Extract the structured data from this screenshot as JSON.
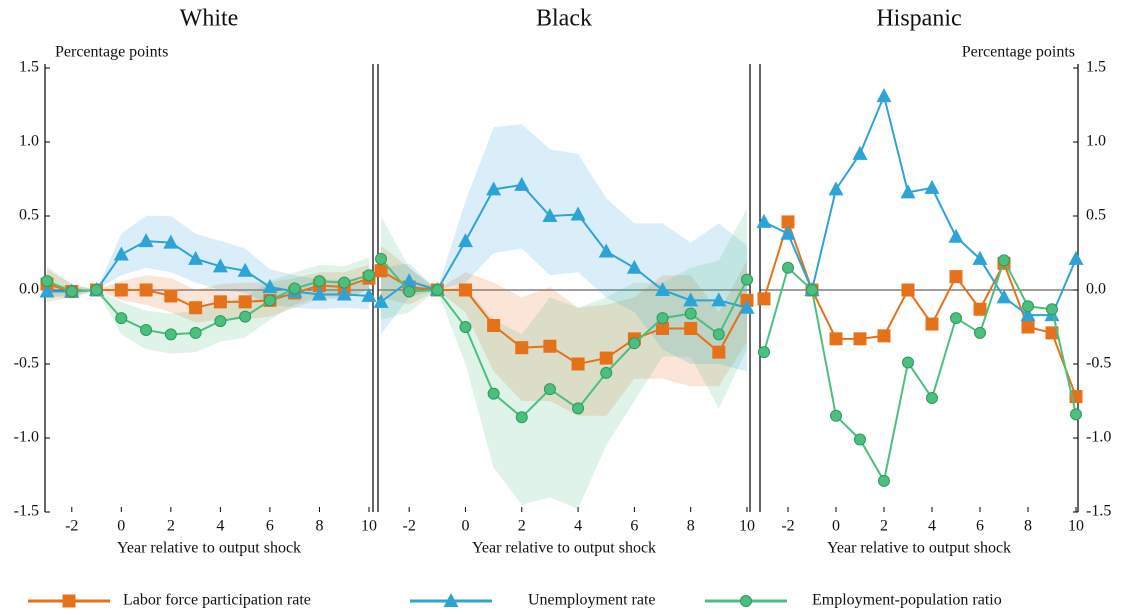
{
  "chart_data": [
    {
      "type": "line",
      "title": "White",
      "ylabel": "Percentage points",
      "xlabel": "Year relative to output shock",
      "ytick_side": "left",
      "x": [
        -3,
        -2,
        -1,
        0,
        1,
        2,
        3,
        4,
        5,
        6,
        7,
        8,
        9,
        10
      ],
      "xlim": [
        -3,
        10
      ],
      "xticks": [
        -2,
        0,
        2,
        4,
        6,
        8,
        10
      ],
      "ylim": [
        -1.5,
        1.5
      ],
      "yticks": [
        1.5,
        {
          "value": 1,
          "label": "1.0"
        },
        0.5,
        {
          "value": 0,
          "label": "0.0"
        },
        -0.5,
        {
          "value": -1,
          "label": "-1.0"
        },
        -1.5
      ],
      "series": [
        {
          "name": "Labor force participation rate",
          "color": "#e5711a",
          "marker": "square",
          "values": [
            0.04,
            -0.01,
            0,
            0,
            0,
            -0.04,
            -0.12,
            -0.08,
            -0.08,
            -0.07,
            -0.02,
            0.03,
            0.02,
            0.08
          ],
          "lower": [
            -0.08,
            -0.05,
            0,
            -0.07,
            -0.1,
            -0.15,
            -0.22,
            -0.2,
            -0.2,
            -0.18,
            -0.12,
            -0.06,
            -0.06,
            0
          ],
          "upper": [
            0.14,
            0.04,
            0,
            0.06,
            0.1,
            0.08,
            0,
            0.04,
            0.05,
            0.05,
            0.08,
            0.12,
            0.12,
            0.17
          ]
        },
        {
          "name": "Unemployment rate",
          "color": "#2ea3d6",
          "marker": "triangle",
          "values": [
            -0.01,
            -0.01,
            0,
            0.24,
            0.33,
            0.32,
            0.21,
            0.16,
            0.13,
            0.02,
            -0.01,
            -0.03,
            -0.03,
            -0.04
          ],
          "lower": [
            -0.05,
            -0.03,
            0,
            0.1,
            0.15,
            0.12,
            0.05,
            0,
            -0.02,
            -0.1,
            -0.12,
            -0.13,
            -0.12,
            -0.13
          ],
          "upper": [
            0.04,
            0.02,
            0,
            0.38,
            0.5,
            0.5,
            0.38,
            0.33,
            0.28,
            0.14,
            0.1,
            0.07,
            0.07,
            0.06
          ]
        },
        {
          "name": "Employment-population ratio",
          "color": "#4cbf7f",
          "marker": "circle",
          "values": [
            0.06,
            -0.01,
            0,
            -0.19,
            -0.27,
            -0.3,
            -0.29,
            -0.21,
            -0.18,
            -0.07,
            0.01,
            0.06,
            0.05,
            0.1
          ],
          "lower": [
            -0.04,
            -0.06,
            0,
            -0.3,
            -0.4,
            -0.43,
            -0.42,
            -0.35,
            -0.32,
            -0.2,
            -0.1,
            -0.04,
            -0.05,
            0
          ],
          "upper": [
            0.16,
            0.04,
            0,
            -0.08,
            -0.14,
            -0.16,
            -0.14,
            -0.08,
            -0.05,
            0.06,
            0.12,
            0.17,
            0.16,
            0.22
          ]
        }
      ]
    },
    {
      "type": "line",
      "title": "Black",
      "xlabel": "Year relative to output shock",
      "x": [
        -3,
        -2,
        -1,
        0,
        1,
        2,
        3,
        4,
        5,
        6,
        7,
        8,
        9,
        10
      ],
      "xlim": [
        -3,
        10
      ],
      "xticks": [
        -2,
        0,
        2,
        4,
        6,
        8,
        10
      ],
      "ylim": [
        -1.5,
        1.5
      ],
      "series": [
        {
          "color": "#e5711a",
          "marker": "square",
          "values": [
            0.13,
            0.02,
            0,
            0,
            -0.24,
            -0.39,
            -0.38,
            -0.5,
            -0.46,
            -0.33,
            -0.26,
            -0.26,
            -0.42,
            -0.07
          ],
          "lower": [
            -0.05,
            -0.1,
            0,
            -0.15,
            -0.55,
            -0.75,
            -0.75,
            -0.85,
            -0.85,
            -0.6,
            -0.6,
            -0.65,
            -0.65,
            -0.35
          ],
          "upper": [
            0.3,
            0.15,
            0,
            0.12,
            0.05,
            -0.05,
            0.02,
            -0.12,
            -0.1,
            -0.05,
            0.1,
            0.1,
            -0.15,
            0.2
          ]
        },
        {
          "color": "#2ea3d6",
          "marker": "triangle",
          "values": [
            -0.08,
            0.06,
            0,
            0.33,
            0.68,
            0.71,
            0.5,
            0.51,
            0.26,
            0.15,
            0,
            -0.07,
            -0.07,
            -0.12
          ],
          "lower": [
            -0.3,
            -0.05,
            0,
            0.05,
            0.25,
            0.28,
            0.1,
            0.12,
            -0.05,
            -0.15,
            -0.4,
            -0.5,
            -0.5,
            -0.55
          ],
          "upper": [
            0.15,
            0.18,
            0,
            0.6,
            1.1,
            1.12,
            0.95,
            0.92,
            0.62,
            0.45,
            0.45,
            0.32,
            0.45,
            0.3
          ]
        },
        {
          "color": "#4cbf7f",
          "marker": "circle",
          "values": [
            0.21,
            -0.01,
            0,
            -0.25,
            -0.7,
            -0.86,
            -0.67,
            -0.8,
            -0.56,
            -0.36,
            -0.19,
            -0.16,
            -0.3,
            0.07
          ],
          "lower": [
            -0.2,
            -0.15,
            0,
            -0.5,
            -1.2,
            -1.45,
            -1.4,
            -1.48,
            -1.05,
            -0.75,
            -0.45,
            -0.45,
            -0.8,
            -0.4
          ],
          "upper": [
            0.5,
            0.15,
            0,
            0.02,
            -0.2,
            -0.3,
            -0.05,
            -0.12,
            -0.05,
            0.05,
            0.05,
            0.15,
            0.2,
            0.55
          ]
        }
      ]
    },
    {
      "type": "line",
      "title": "Hispanic",
      "ylabel": "Percentage points",
      "xlabel": "Year relative to output shock",
      "ytick_side": "right",
      "x": [
        -3,
        -2,
        -1,
        0,
        1,
        2,
        3,
        4,
        5,
        6,
        7,
        8,
        9,
        10
      ],
      "xlim": [
        -3,
        10
      ],
      "xticks": [
        -2,
        0,
        2,
        4,
        6,
        8,
        10
      ],
      "ylim": [
        -1.5,
        1.5
      ],
      "yticks": [
        1.5,
        {
          "value": 1,
          "label": "1.0"
        },
        0.5,
        {
          "value": 0,
          "label": "0.0"
        },
        -0.5,
        {
          "value": -1,
          "label": "-1.0"
        },
        -1.5
      ],
      "series": [
        {
          "color": "#e5711a",
          "marker": "square",
          "values": [
            -0.06,
            0.46,
            0,
            -0.33,
            -0.33,
            -0.31,
            0,
            -0.23,
            0.09,
            -0.13,
            0.18,
            -0.25,
            -0.29,
            -0.72
          ]
        },
        {
          "color": "#2ea3d6",
          "marker": "triangle",
          "values": [
            0.46,
            0.38,
            0,
            0.68,
            0.92,
            1.31,
            0.66,
            0.69,
            0.36,
            0.21,
            -0.05,
            -0.17,
            -0.17,
            0.21
          ]
        },
        {
          "color": "#4cbf7f",
          "marker": "circle",
          "values": [
            -0.42,
            0.15,
            0,
            -0.85,
            -1.01,
            -1.29,
            -0.49,
            -0.73,
            -0.19,
            -0.29,
            0.2,
            -0.11,
            -0.13,
            -0.84
          ]
        }
      ]
    }
  ]
}
